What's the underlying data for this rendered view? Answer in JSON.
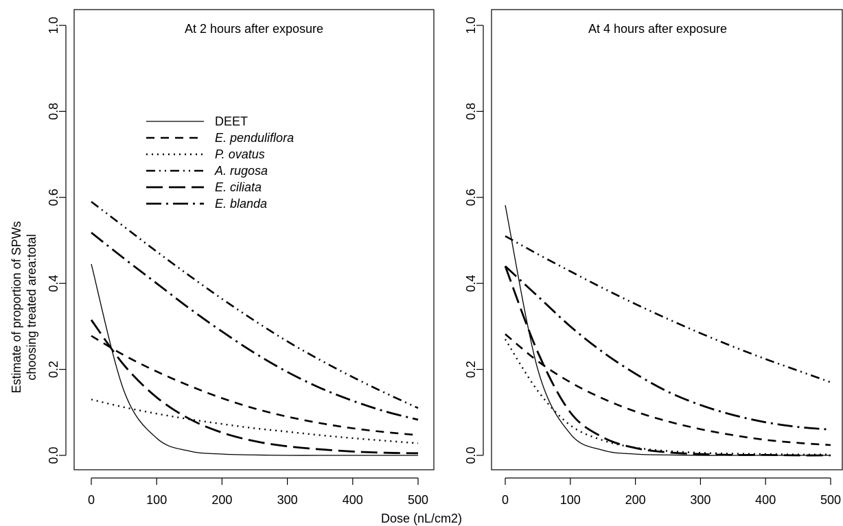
{
  "figure": {
    "ylabel_line1": "Estimate of proportion of SPWs",
    "ylabel_line2": "choosing treated area:total",
    "xlabel": "Dose (nL/cm2)"
  },
  "chart_data": [
    {
      "type": "line",
      "title": "At 2 hours after exposure",
      "xlabel": "Dose (nL/cm2)",
      "ylabel": "Estimate of proportion of SPWs choosing treated area:total",
      "xlim": [
        0,
        500
      ],
      "ylim": [
        0,
        1
      ],
      "x_ticks": [
        "0",
        "100",
        "200",
        "300",
        "400",
        "500"
      ],
      "y_ticks": [
        "0.0",
        "0.2",
        "0.4",
        "0.6",
        "0.8",
        "1.0"
      ],
      "grid": false,
      "legend_position": "upper-left",
      "x": [
        0,
        50,
        100,
        150,
        200,
        250,
        300,
        350,
        400,
        450,
        500
      ],
      "series": [
        {
          "name": "DEET",
          "style": "solid",
          "values": [
            0.445,
            0.15,
            0.04,
            0.01,
            0.003,
            0.001,
            0.0,
            0.0,
            0.0,
            0.0,
            0.0
          ]
        },
        {
          "name": "E. penduliflora",
          "style": "dashed",
          "values": [
            0.278,
            0.233,
            0.195,
            0.162,
            0.133,
            0.109,
            0.09,
            0.075,
            0.063,
            0.054,
            0.047
          ]
        },
        {
          "name": "P. ovatus",
          "style": "dotted",
          "values": [
            0.13,
            0.112,
            0.097,
            0.084,
            0.073,
            0.063,
            0.055,
            0.047,
            0.04,
            0.034,
            0.028
          ]
        },
        {
          "name": "A. rugosa",
          "style": "dash-dot-dot",
          "values": [
            0.59,
            0.532,
            0.474,
            0.418,
            0.364,
            0.313,
            0.265,
            0.222,
            0.182,
            0.145,
            0.11
          ]
        },
        {
          "name": "E. ciliata",
          "style": "long-dash",
          "values": [
            0.315,
            0.21,
            0.135,
            0.085,
            0.053,
            0.033,
            0.021,
            0.014,
            0.009,
            0.006,
            0.005
          ]
        },
        {
          "name": "E. blanda",
          "style": "dash-dot",
          "values": [
            0.518,
            0.458,
            0.4,
            0.342,
            0.288,
            0.238,
            0.194,
            0.157,
            0.127,
            0.102,
            0.083
          ]
        }
      ]
    },
    {
      "type": "line",
      "title": "At 4 hours after exposure",
      "xlabel": "Dose (nL/cm2)",
      "ylabel": "Estimate of proportion of SPWs choosing treated area:total",
      "xlim": [
        0,
        500
      ],
      "ylim": [
        0,
        1
      ],
      "x_ticks": [
        "0",
        "100",
        "200",
        "300",
        "400",
        "500"
      ],
      "y_ticks": [
        "0.0",
        "0.2",
        "0.4",
        "0.6",
        "0.8",
        "1.0"
      ],
      "grid": false,
      "x": [
        0,
        50,
        100,
        150,
        200,
        250,
        300,
        350,
        400,
        450,
        500
      ],
      "series": [
        {
          "name": "DEET",
          "style": "solid",
          "values": [
            0.582,
            0.2,
            0.05,
            0.012,
            0.003,
            0.001,
            0.0,
            0.0,
            0.0,
            0.0,
            0.0
          ]
        },
        {
          "name": "E. penduliflora",
          "style": "dashed",
          "values": [
            0.282,
            0.219,
            0.17,
            0.132,
            0.102,
            0.079,
            0.061,
            0.047,
            0.036,
            0.029,
            0.024
          ]
        },
        {
          "name": "P. ovatus",
          "style": "dotted",
          "values": [
            0.27,
            0.15,
            0.07,
            0.035,
            0.018,
            0.01,
            0.006,
            0.004,
            0.003,
            0.002,
            0.002
          ]
        },
        {
          "name": "A. rugosa",
          "style": "dash-dot-dot",
          "values": [
            0.51,
            0.468,
            0.428,
            0.389,
            0.352,
            0.317,
            0.284,
            0.253,
            0.224,
            0.197,
            0.17
          ]
        },
        {
          "name": "E. ciliata",
          "style": "long-dash",
          "values": [
            0.44,
            0.24,
            0.1,
            0.042,
            0.017,
            0.007,
            0.003,
            0.001,
            0.001,
            0.0,
            0.0
          ]
        },
        {
          "name": "E. blanda",
          "style": "dash-dot",
          "values": [
            0.44,
            0.37,
            0.3,
            0.24,
            0.19,
            0.148,
            0.117,
            0.094,
            0.077,
            0.066,
            0.06
          ]
        }
      ]
    }
  ]
}
